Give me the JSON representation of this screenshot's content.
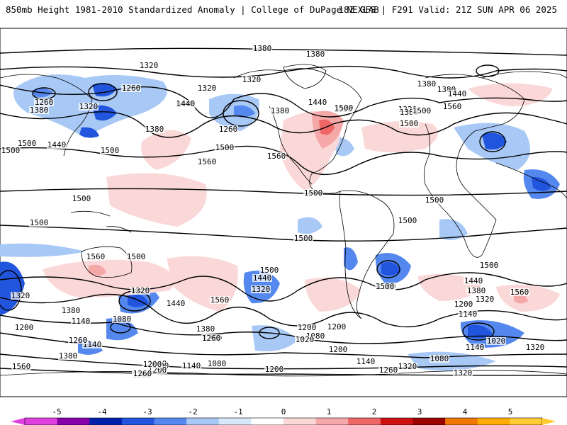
{
  "header": {
    "title_left": "850mb Height 1981-2010 Standardized Anomaly | College of DuPage NEXLAB",
    "title_right": "18Z GFS | F291 Valid: 21Z SUN APR 06 2025"
  },
  "map": {
    "projection": "global",
    "field": "850mb geopotential height with standardized anomaly shading",
    "contour_labels": [
      {
        "text": "1380"
      },
      {
        "text": "1380"
      },
      {
        "text": "1320"
      },
      {
        "text": "1320"
      },
      {
        "text": "1380"
      },
      {
        "text": "1380"
      },
      {
        "text": "1440"
      },
      {
        "text": "1320"
      },
      {
        "text": "1380"
      },
      {
        "text": "1260"
      },
      {
        "text": "1380"
      },
      {
        "text": "1320"
      },
      {
        "text": "1260"
      },
      {
        "text": "1440"
      },
      {
        "text": "1500"
      },
      {
        "text": "1440"
      },
      {
        "text": "1500"
      },
      {
        "text": "1380"
      },
      {
        "text": "1260"
      },
      {
        "text": "1320"
      },
      {
        "text": "1380"
      },
      {
        "text": "1440"
      },
      {
        "text": "1500"
      },
      {
        "text": "1560"
      },
      {
        "text": "1500"
      },
      {
        "text": "1440"
      },
      {
        "text": "1500"
      },
      {
        "text": "1500"
      },
      {
        "text": "1500"
      },
      {
        "text": "1560"
      },
      {
        "text": "1500"
      },
      {
        "text": "1560"
      },
      {
        "text": "1500"
      },
      {
        "text": "1500"
      },
      {
        "text": "1500"
      },
      {
        "text": "1500"
      },
      {
        "text": "1500"
      },
      {
        "text": "1500"
      },
      {
        "text": "1500"
      },
      {
        "text": "1500"
      },
      {
        "text": "1560"
      },
      {
        "text": "1560"
      },
      {
        "text": "1500"
      },
      {
        "text": "1320"
      },
      {
        "text": "1320"
      },
      {
        "text": "1200"
      },
      {
        "text": "1440"
      },
      {
        "text": "1500"
      },
      {
        "text": "1440"
      },
      {
        "text": "1320"
      },
      {
        "text": "1560"
      },
      {
        "text": "1380"
      },
      {
        "text": "1140"
      },
      {
        "text": "1080"
      },
      {
        "text": "1140"
      },
      {
        "text": "1260"
      },
      {
        "text": "1380"
      },
      {
        "text": "1260"
      },
      {
        "text": "1200"
      },
      {
        "text": "1080"
      },
      {
        "text": "1020"
      },
      {
        "text": "1200"
      },
      {
        "text": "1140"
      },
      {
        "text": "1080"
      },
      {
        "text": "1200"
      },
      {
        "text": "1140"
      },
      {
        "text": "1200"
      },
      {
        "text": "1200"
      },
      {
        "text": "1140"
      },
      {
        "text": "1260"
      },
      {
        "text": "1380"
      },
      {
        "text": "1260"
      },
      {
        "text": "1500"
      },
      {
        "text": "1500"
      },
      {
        "text": "1440"
      },
      {
        "text": "1380"
      },
      {
        "text": "1320"
      },
      {
        "text": "1200"
      },
      {
        "text": "1140"
      },
      {
        "text": "1080"
      },
      {
        "text": "1020"
      },
      {
        "text": "1320"
      },
      {
        "text": "1140"
      },
      {
        "text": "1560"
      },
      {
        "text": "1200"
      },
      {
        "text": "1200"
      },
      {
        "text": "1320"
      },
      {
        "text": "1260"
      },
      {
        "text": "1320"
      },
      {
        "text": "1260"
      }
    ]
  },
  "colorbar": {
    "tick_labels": [
      "-5",
      "-4",
      "-3",
      "-2",
      "-1",
      "0",
      "1",
      "2",
      "3",
      "4",
      "5"
    ],
    "range": [
      -5,
      5
    ],
    "colors": [
      "#e040e0",
      "#8800aa",
      "#0022aa",
      "#2255dd",
      "#5588ee",
      "#a8c8f5",
      "#d8e8fb",
      "#ffffff",
      "#fbd8d8",
      "#f5a8a8",
      "#ee6666",
      "#cc1111",
      "#990000",
      "#ee7700",
      "#ffaa00",
      "#ffcc33"
    ]
  }
}
